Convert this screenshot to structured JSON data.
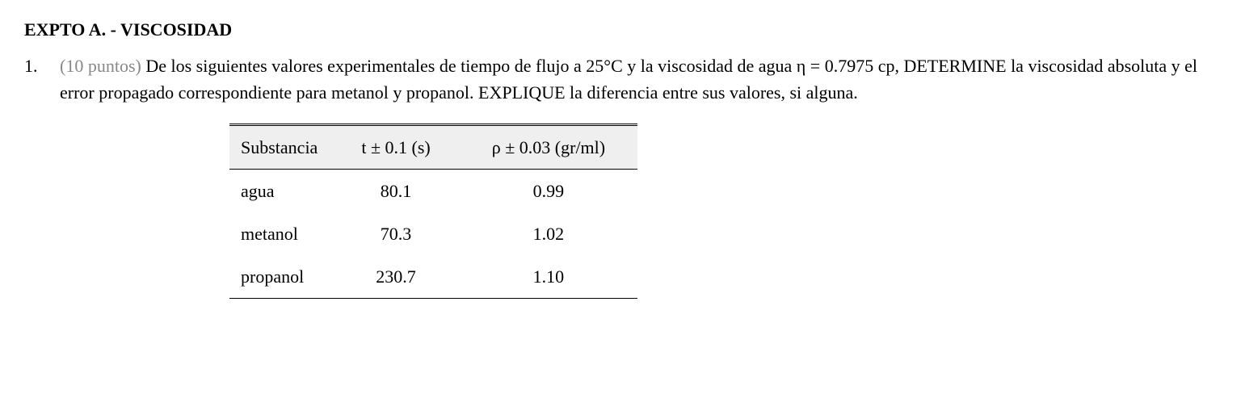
{
  "heading": "EXPTO A. - VISCOSIDAD",
  "question": {
    "number": "1.",
    "points": "(10 puntos)",
    "text_part1": " De los siguientes valores experimentales de tiempo de flujo a 25°C y la viscosidad de agua η = 0.7975 cp, DETERMINE la viscosidad absoluta y el error propagado correspondiente para metanol y propanol.  EXPLIQUE la diferencia entre sus valores, si alguna."
  },
  "table": {
    "columns": {
      "substance": "Substancia",
      "time": "t ± 0.1 (s)",
      "density": "ρ ± 0.03 (gr/ml)"
    },
    "rows": [
      {
        "substance": "agua",
        "time": "80.1",
        "density": "0.99"
      },
      {
        "substance": "metanol",
        "time": "70.3",
        "density": "1.02"
      },
      {
        "substance": "propanol",
        "time": "230.7",
        "density": "1.10"
      }
    ]
  }
}
